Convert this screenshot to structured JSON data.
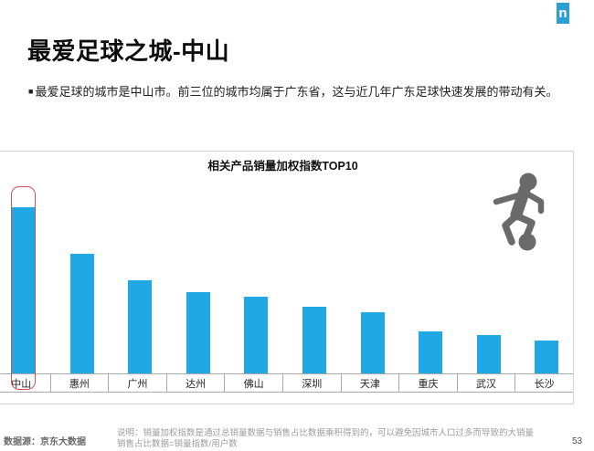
{
  "slide": {
    "logo_letter": "n",
    "title": "最爱足球之城-中山",
    "bullet_marker": "■",
    "bullet_text": "最爱足球的城市是中山市。前三位的城市均属于广东省，这与近几年广东足球快速发展的带动有关。",
    "page_number": "53",
    "footer": {
      "source": "数据源：京东大数据",
      "note_line1": "说明：销量加权指数是通过总销量数据与销售占比数据乘积得到的，可以避免因城市人口过多而导致的大销量",
      "note_line2": "销售占比数据=销量指数/用户数"
    }
  },
  "chart_data": {
    "type": "bar",
    "title": "相关产品销量加权指数TOP10",
    "categories": [
      "中山",
      "惠州",
      "广州",
      "达州",
      "佛山",
      "深圳",
      "天津",
      "重庆",
      "武汉",
      "长沙"
    ],
    "values": [
      100,
      72,
      56,
      49,
      46,
      40,
      37,
      25,
      23,
      20
    ],
    "values_note": "no value axis shown in chart; values estimated from bar heights relative to 中山 = 100",
    "highlighted_category": "中山",
    "value_axis_visible": false,
    "grid": false,
    "legend": null,
    "ylim": [
      0,
      110
    ],
    "colors": {
      "bar": "#1fa8e3",
      "highlight_box": "#cf5456",
      "axis_line": "#a9a9a9",
      "icon_gray": "#6a6a6a",
      "logo_blue": "#2e9fd6"
    }
  },
  "icons": {
    "brand_logo": "nielsen-n-logo",
    "decoration": "soccer-player-icon",
    "ball": "football-icon"
  }
}
